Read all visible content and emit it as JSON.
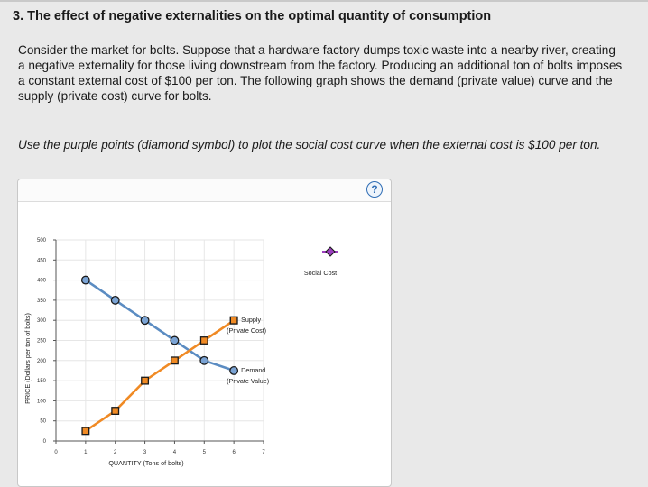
{
  "question": {
    "title": "3. The effect of negative externalities on the optimal quantity of consumption",
    "body": "Consider the market for bolts. Suppose that a hardware factory dumps toxic waste into a nearby river, creating a negative externality for those living downstream from the factory. Producing an additional ton of bolts imposes a constant external cost of $100 per ton. The following graph shows the demand (private value) curve and the supply (private cost) curve for bolts.",
    "instruction": "Use the purple points (diamond symbol) to plot the social cost curve when the external cost is $100 per ton."
  },
  "help": {
    "icon": "question-mark-icon",
    "label": "?"
  },
  "colors": {
    "demand": "#5b8cc2",
    "demand_fill": "#7aa3d4",
    "supply": "#f08a24",
    "supply_fill": "#f08a24",
    "social_cost": "#9c3fbf",
    "grid": "#e6e6e6"
  },
  "chart_data": {
    "type": "line",
    "xlabel": "QUANTITY (Tons of bolts)",
    "ylabel": "PRICE (Dollars per ton of bolts)",
    "xlim": [
      0,
      7
    ],
    "ylim": [
      0,
      500
    ],
    "x_ticks": [
      0,
      1,
      2,
      3,
      4,
      5,
      6,
      7
    ],
    "y_ticks": [
      0,
      50,
      100,
      150,
      200,
      250,
      300,
      350,
      400,
      450,
      500
    ],
    "grid": true,
    "series": [
      {
        "name": "Demand",
        "label_lines": [
          "Demand",
          "(Private Value)"
        ],
        "marker": "circle",
        "x": [
          1,
          2,
          3,
          4,
          5
        ],
        "y": [
          400,
          350,
          300,
          250,
          200
        ],
        "end_marker": {
          "x": 6,
          "y": 175
        }
      },
      {
        "name": "Supply",
        "label_lines": [
          "Supply",
          "(Private Cost)"
        ],
        "marker": "square",
        "x": [
          1,
          2,
          3,
          4,
          5,
          6
        ],
        "y": [
          25,
          75,
          150,
          200,
          250,
          300
        ]
      }
    ],
    "palette_tool": {
      "name": "Social Cost",
      "marker": "diamond"
    }
  }
}
